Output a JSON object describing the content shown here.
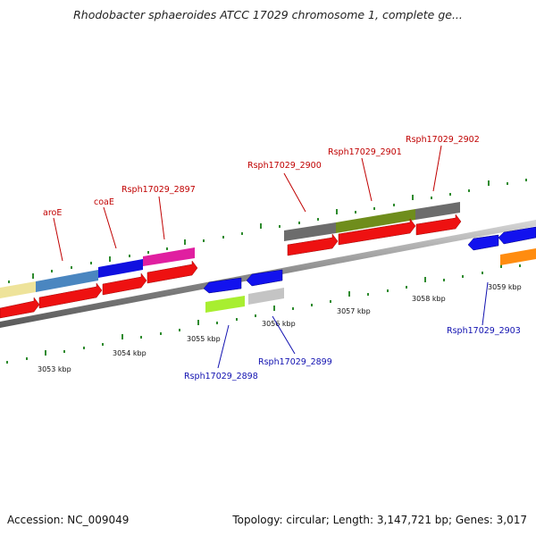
{
  "title": "Rhodobacter sphaeroides ATCC 17029 chromosome 1, complete ge...",
  "footer": {
    "accession": "Accession: NC_009049",
    "summary": "Topology: circular; Length: 3,147,721 bp; Genes: 3,017"
  },
  "colors": {
    "chromosome": "#8a8a8a",
    "tick": "#2e8b2e",
    "label_top": "#c00000",
    "label_bottom": "#1010b0"
  },
  "axis_labels": [
    "3053 kbp",
    "3054 kbp",
    "3055 kbp",
    "3056 kbp",
    "3057 kbp",
    "3058 kbp",
    "3059 kbp"
  ],
  "top_labels": [
    "aroE",
    "coaE",
    "Rsph17029_2897",
    "Rsph17029_2900",
    "Rsph17029_2901",
    "Rsph17029_2902"
  ],
  "bottom_labels": [
    "Rsph17029_2898",
    "Rsph17029_2899",
    "Rsph17029_2903"
  ]
}
